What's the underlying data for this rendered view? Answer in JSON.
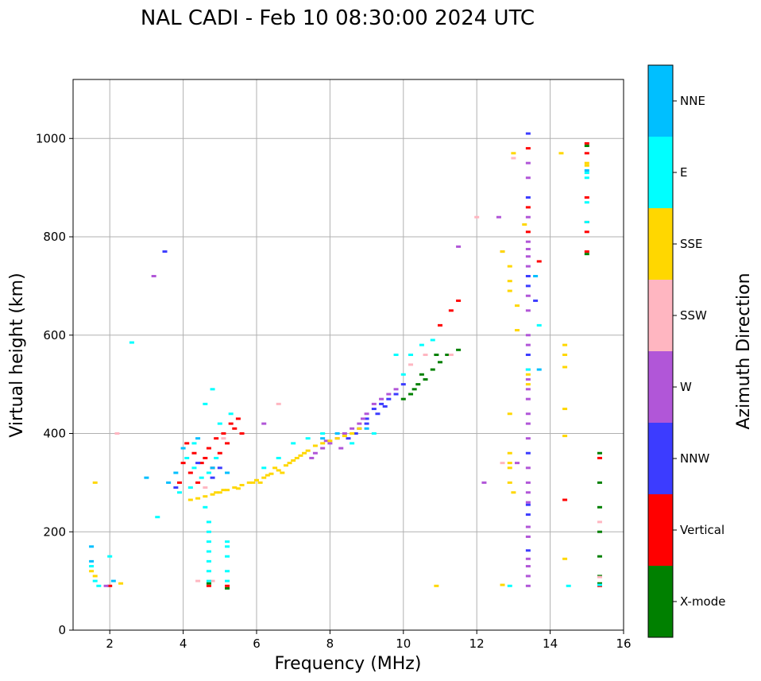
{
  "chart_data": {
    "type": "scatter",
    "title": "NAL CADI - Feb 10 08:30:00 2024 UTC",
    "xlabel": "Frequency (MHz)",
    "ylabel": "Virtual height (km)",
    "xlim": [
      1,
      16
    ],
    "ylim": [
      0,
      1120
    ],
    "xticks": [
      2,
      4,
      6,
      8,
      10,
      12,
      14,
      16
    ],
    "yticks": [
      0,
      200,
      400,
      600,
      800,
      1000
    ],
    "grid": true,
    "colorbar": {
      "title": "Azimuth Direction",
      "categories": [
        "X-mode",
        "Vertical",
        "NNW",
        "W",
        "SSW",
        "SSE",
        "E",
        "NNE"
      ],
      "colors": [
        "#008000",
        "#ff0000",
        "#3c3cff",
        "#b156d8",
        "#ffb6c1",
        "#ffd700",
        "#00ffff",
        "#00bfff"
      ]
    },
    "series": [
      {
        "name": "X-mode",
        "points": [
          [
            10.2,
            480
          ],
          [
            10.4,
            500
          ],
          [
            10.6,
            510
          ],
          [
            10.8,
            530
          ],
          [
            10.0,
            470
          ],
          [
            10.5,
            520
          ],
          [
            10.9,
            560
          ],
          [
            11.0,
            545
          ],
          [
            10.3,
            490
          ],
          [
            11.2,
            560
          ],
          [
            11.5,
            570
          ],
          [
            15.35,
            360
          ],
          [
            15.35,
            300
          ],
          [
            15.35,
            250
          ],
          [
            15.35,
            200
          ],
          [
            15.35,
            150
          ],
          [
            15.35,
            110
          ],
          [
            15.35,
            95
          ],
          [
            15.0,
            765
          ],
          [
            15.0,
            985
          ],
          [
            4.7,
            95
          ],
          [
            5.2,
            85
          ]
        ]
      },
      {
        "name": "Vertical",
        "points": [
          [
            4.1,
            380
          ],
          [
            4.3,
            360
          ],
          [
            4.5,
            340
          ],
          [
            4.7,
            370
          ],
          [
            4.9,
            390
          ],
          [
            5.1,
            400
          ],
          [
            5.3,
            420
          ],
          [
            5.2,
            380
          ],
          [
            5.5,
            430
          ],
          [
            4.2,
            320
          ],
          [
            4.4,
            300
          ],
          [
            4.6,
            350
          ],
          [
            5.0,
            360
          ],
          [
            5.4,
            410
          ],
          [
            4.0,
            340
          ],
          [
            3.9,
            300
          ],
          [
            4.8,
            330
          ],
          [
            5.6,
            400
          ],
          [
            11.0,
            620
          ],
          [
            11.3,
            650
          ],
          [
            11.5,
            670
          ],
          [
            13.4,
            980
          ],
          [
            13.4,
            860
          ],
          [
            13.7,
            750
          ],
          [
            13.4,
            810
          ],
          [
            14.4,
            265
          ],
          [
            15.0,
            990
          ],
          [
            15.0,
            970
          ],
          [
            15.0,
            880
          ],
          [
            15.0,
            830
          ],
          [
            15.0,
            810
          ],
          [
            15.0,
            770
          ],
          [
            15.35,
            350
          ],
          [
            15.35,
            90
          ],
          [
            2.0,
            90
          ],
          [
            4.7,
            90
          ],
          [
            5.2,
            90
          ]
        ]
      },
      {
        "name": "NNW",
        "points": [
          [
            8.5,
            390
          ],
          [
            8.8,
            410
          ],
          [
            9.0,
            430
          ],
          [
            9.2,
            450
          ],
          [
            9.4,
            460
          ],
          [
            9.6,
            470
          ],
          [
            9.8,
            480
          ],
          [
            9.0,
            420
          ],
          [
            8.7,
            400
          ],
          [
            9.3,
            440
          ],
          [
            9.5,
            455
          ],
          [
            10.0,
            500
          ],
          [
            13.4,
            1010
          ],
          [
            13.4,
            880
          ],
          [
            13.4,
            720
          ],
          [
            13.4,
            700
          ],
          [
            13.6,
            670
          ],
          [
            13.4,
            560
          ],
          [
            13.4,
            360
          ],
          [
            13.4,
            255
          ],
          [
            13.4,
            235
          ],
          [
            13.4,
            162
          ],
          [
            3.5,
            770
          ],
          [
            5.0,
            330
          ],
          [
            4.8,
            310
          ],
          [
            3.8,
            290
          ],
          [
            4.4,
            340
          ]
        ]
      },
      {
        "name": "W",
        "points": [
          [
            7.6,
            360
          ],
          [
            7.8,
            370
          ],
          [
            8.0,
            380
          ],
          [
            8.2,
            390
          ],
          [
            8.4,
            400
          ],
          [
            8.6,
            410
          ],
          [
            8.8,
            420
          ],
          [
            9.0,
            440
          ],
          [
            9.2,
            460
          ],
          [
            9.4,
            470
          ],
          [
            9.6,
            480
          ],
          [
            9.8,
            490
          ],
          [
            8.3,
            370
          ],
          [
            8.9,
            430
          ],
          [
            7.5,
            350
          ],
          [
            7.9,
            385
          ],
          [
            13.4,
            950
          ],
          [
            13.4,
            920
          ],
          [
            13.4,
            840
          ],
          [
            13.4,
            790
          ],
          [
            13.4,
            775
          ],
          [
            13.4,
            760
          ],
          [
            13.4,
            740
          ],
          [
            13.4,
            680
          ],
          [
            13.4,
            650
          ],
          [
            13.4,
            600
          ],
          [
            13.4,
            580
          ],
          [
            13.4,
            530
          ],
          [
            13.4,
            510
          ],
          [
            13.4,
            490
          ],
          [
            13.4,
            470
          ],
          [
            13.4,
            440
          ],
          [
            13.4,
            420
          ],
          [
            13.4,
            390
          ],
          [
            13.4,
            330
          ],
          [
            13.4,
            300
          ],
          [
            13.4,
            280
          ],
          [
            13.4,
            260
          ],
          [
            13.4,
            210
          ],
          [
            13.4,
            190
          ],
          [
            13.4,
            145
          ],
          [
            13.4,
            130
          ],
          [
            13.4,
            110
          ],
          [
            13.4,
            90
          ],
          [
            12.6,
            840
          ],
          [
            12.7,
            770
          ],
          [
            12.2,
            300
          ],
          [
            13.1,
            340
          ],
          [
            3.2,
            720
          ],
          [
            11.5,
            780
          ],
          [
            6.2,
            420
          ],
          [
            1.9,
            90
          ]
        ]
      },
      {
        "name": "SSW",
        "points": [
          [
            12.0,
            840
          ],
          [
            13.0,
            960
          ],
          [
            10.2,
            540
          ],
          [
            10.6,
            560
          ],
          [
            11.3,
            560
          ],
          [
            6.6,
            460
          ],
          [
            2.2,
            400
          ],
          [
            4.8,
            100
          ],
          [
            4.4,
            100
          ],
          [
            12.7,
            340
          ],
          [
            15.35,
            220
          ],
          [
            15.35,
            108
          ],
          [
            5.1,
            390
          ],
          [
            4.6,
            290
          ]
        ]
      },
      {
        "name": "SSE",
        "points": [
          [
            4.2,
            265
          ],
          [
            4.4,
            268
          ],
          [
            4.6,
            272
          ],
          [
            4.8,
            276
          ],
          [
            5.0,
            280
          ],
          [
            5.2,
            285
          ],
          [
            5.4,
            290
          ],
          [
            5.6,
            295
          ],
          [
            5.8,
            300
          ],
          [
            6.0,
            305
          ],
          [
            6.2,
            310
          ],
          [
            6.4,
            318
          ],
          [
            6.6,
            325
          ],
          [
            6.8,
            335
          ],
          [
            7.0,
            345
          ],
          [
            7.2,
            355
          ],
          [
            7.4,
            365
          ],
          [
            7.6,
            375
          ],
          [
            7.8,
            380
          ],
          [
            8.0,
            385
          ],
          [
            8.2,
            390
          ],
          [
            8.4,
            395
          ],
          [
            8.6,
            400
          ],
          [
            8.8,
            410
          ],
          [
            6.5,
            330
          ],
          [
            6.9,
            340
          ],
          [
            7.3,
            360
          ],
          [
            5.5,
            288
          ],
          [
            6.1,
            300
          ],
          [
            6.7,
            320
          ],
          [
            7.1,
            350
          ],
          [
            5.9,
            300
          ],
          [
            6.3,
            315
          ],
          [
            4.9,
            280
          ],
          [
            5.1,
            285
          ],
          [
            1.6,
            300
          ],
          [
            1.5,
            120
          ],
          [
            1.6,
            110
          ],
          [
            2.3,
            95
          ],
          [
            13.0,
            970
          ],
          [
            13.3,
            825
          ],
          [
            12.7,
            770
          ],
          [
            12.9,
            740
          ],
          [
            12.9,
            710
          ],
          [
            12.9,
            690
          ],
          [
            13.1,
            660
          ],
          [
            13.1,
            610
          ],
          [
            13.4,
            520
          ],
          [
            13.4,
            500
          ],
          [
            12.9,
            440
          ],
          [
            12.9,
            360
          ],
          [
            12.9,
            340
          ],
          [
            12.9,
            330
          ],
          [
            12.9,
            300
          ],
          [
            13.0,
            280
          ],
          [
            14.3,
            970
          ],
          [
            14.4,
            580
          ],
          [
            14.4,
            560
          ],
          [
            14.4,
            535
          ],
          [
            14.4,
            450
          ],
          [
            14.4,
            395
          ],
          [
            14.4,
            145
          ],
          [
            12.7,
            92
          ],
          [
            10.9,
            90
          ],
          [
            15.0,
            950
          ],
          [
            15.0,
            945
          ]
        ]
      },
      {
        "name": "E",
        "points": [
          [
            4.1,
            350
          ],
          [
            4.3,
            330
          ],
          [
            4.5,
            310
          ],
          [
            4.7,
            320
          ],
          [
            4.2,
            290
          ],
          [
            3.9,
            280
          ],
          [
            4.6,
            250
          ],
          [
            4.7,
            220
          ],
          [
            4.7,
            200
          ],
          [
            4.7,
            180
          ],
          [
            4.7,
            160
          ],
          [
            4.7,
            140
          ],
          [
            4.7,
            120
          ],
          [
            4.7,
            100
          ],
          [
            5.2,
            170
          ],
          [
            5.2,
            150
          ],
          [
            5.2,
            120
          ],
          [
            5.2,
            100
          ],
          [
            5.2,
            180
          ],
          [
            4.8,
            490
          ],
          [
            4.6,
            460
          ],
          [
            5.3,
            440
          ],
          [
            9.8,
            560
          ],
          [
            10.2,
            560
          ],
          [
            10.5,
            580
          ],
          [
            10.8,
            590
          ],
          [
            10.0,
            520
          ],
          [
            7.0,
            380
          ],
          [
            7.4,
            390
          ],
          [
            7.8,
            400
          ],
          [
            6.6,
            350
          ],
          [
            6.2,
            330
          ],
          [
            1.5,
            130
          ],
          [
            1.6,
            100
          ],
          [
            1.7,
            90
          ],
          [
            2.0,
            150
          ],
          [
            2.6,
            585
          ],
          [
            3.3,
            230
          ],
          [
            13.4,
            530
          ],
          [
            13.7,
            620
          ],
          [
            14.5,
            90
          ],
          [
            12.9,
            90
          ],
          [
            15.0,
            930
          ],
          [
            15.0,
            920
          ],
          [
            15.0,
            870
          ],
          [
            15.0,
            830
          ],
          [
            15.35,
            92
          ],
          [
            4.3,
            380
          ],
          [
            4.9,
            350
          ],
          [
            5.0,
            420
          ],
          [
            8.6,
            380
          ],
          [
            9.2,
            400
          ]
        ]
      },
      {
        "name": "NNE",
        "points": [
          [
            4.0,
            370
          ],
          [
            4.4,
            390
          ],
          [
            4.8,
            330
          ],
          [
            5.2,
            320
          ],
          [
            3.6,
            300
          ],
          [
            3.8,
            320
          ],
          [
            7.8,
            390
          ],
          [
            8.2,
            400
          ],
          [
            9.0,
            410
          ],
          [
            1.5,
            140
          ],
          [
            1.5,
            170
          ],
          [
            2.1,
            100
          ],
          [
            3.0,
            310
          ],
          [
            13.7,
            530
          ],
          [
            13.6,
            720
          ],
          [
            15.0,
            935
          ]
        ]
      }
    ]
  }
}
